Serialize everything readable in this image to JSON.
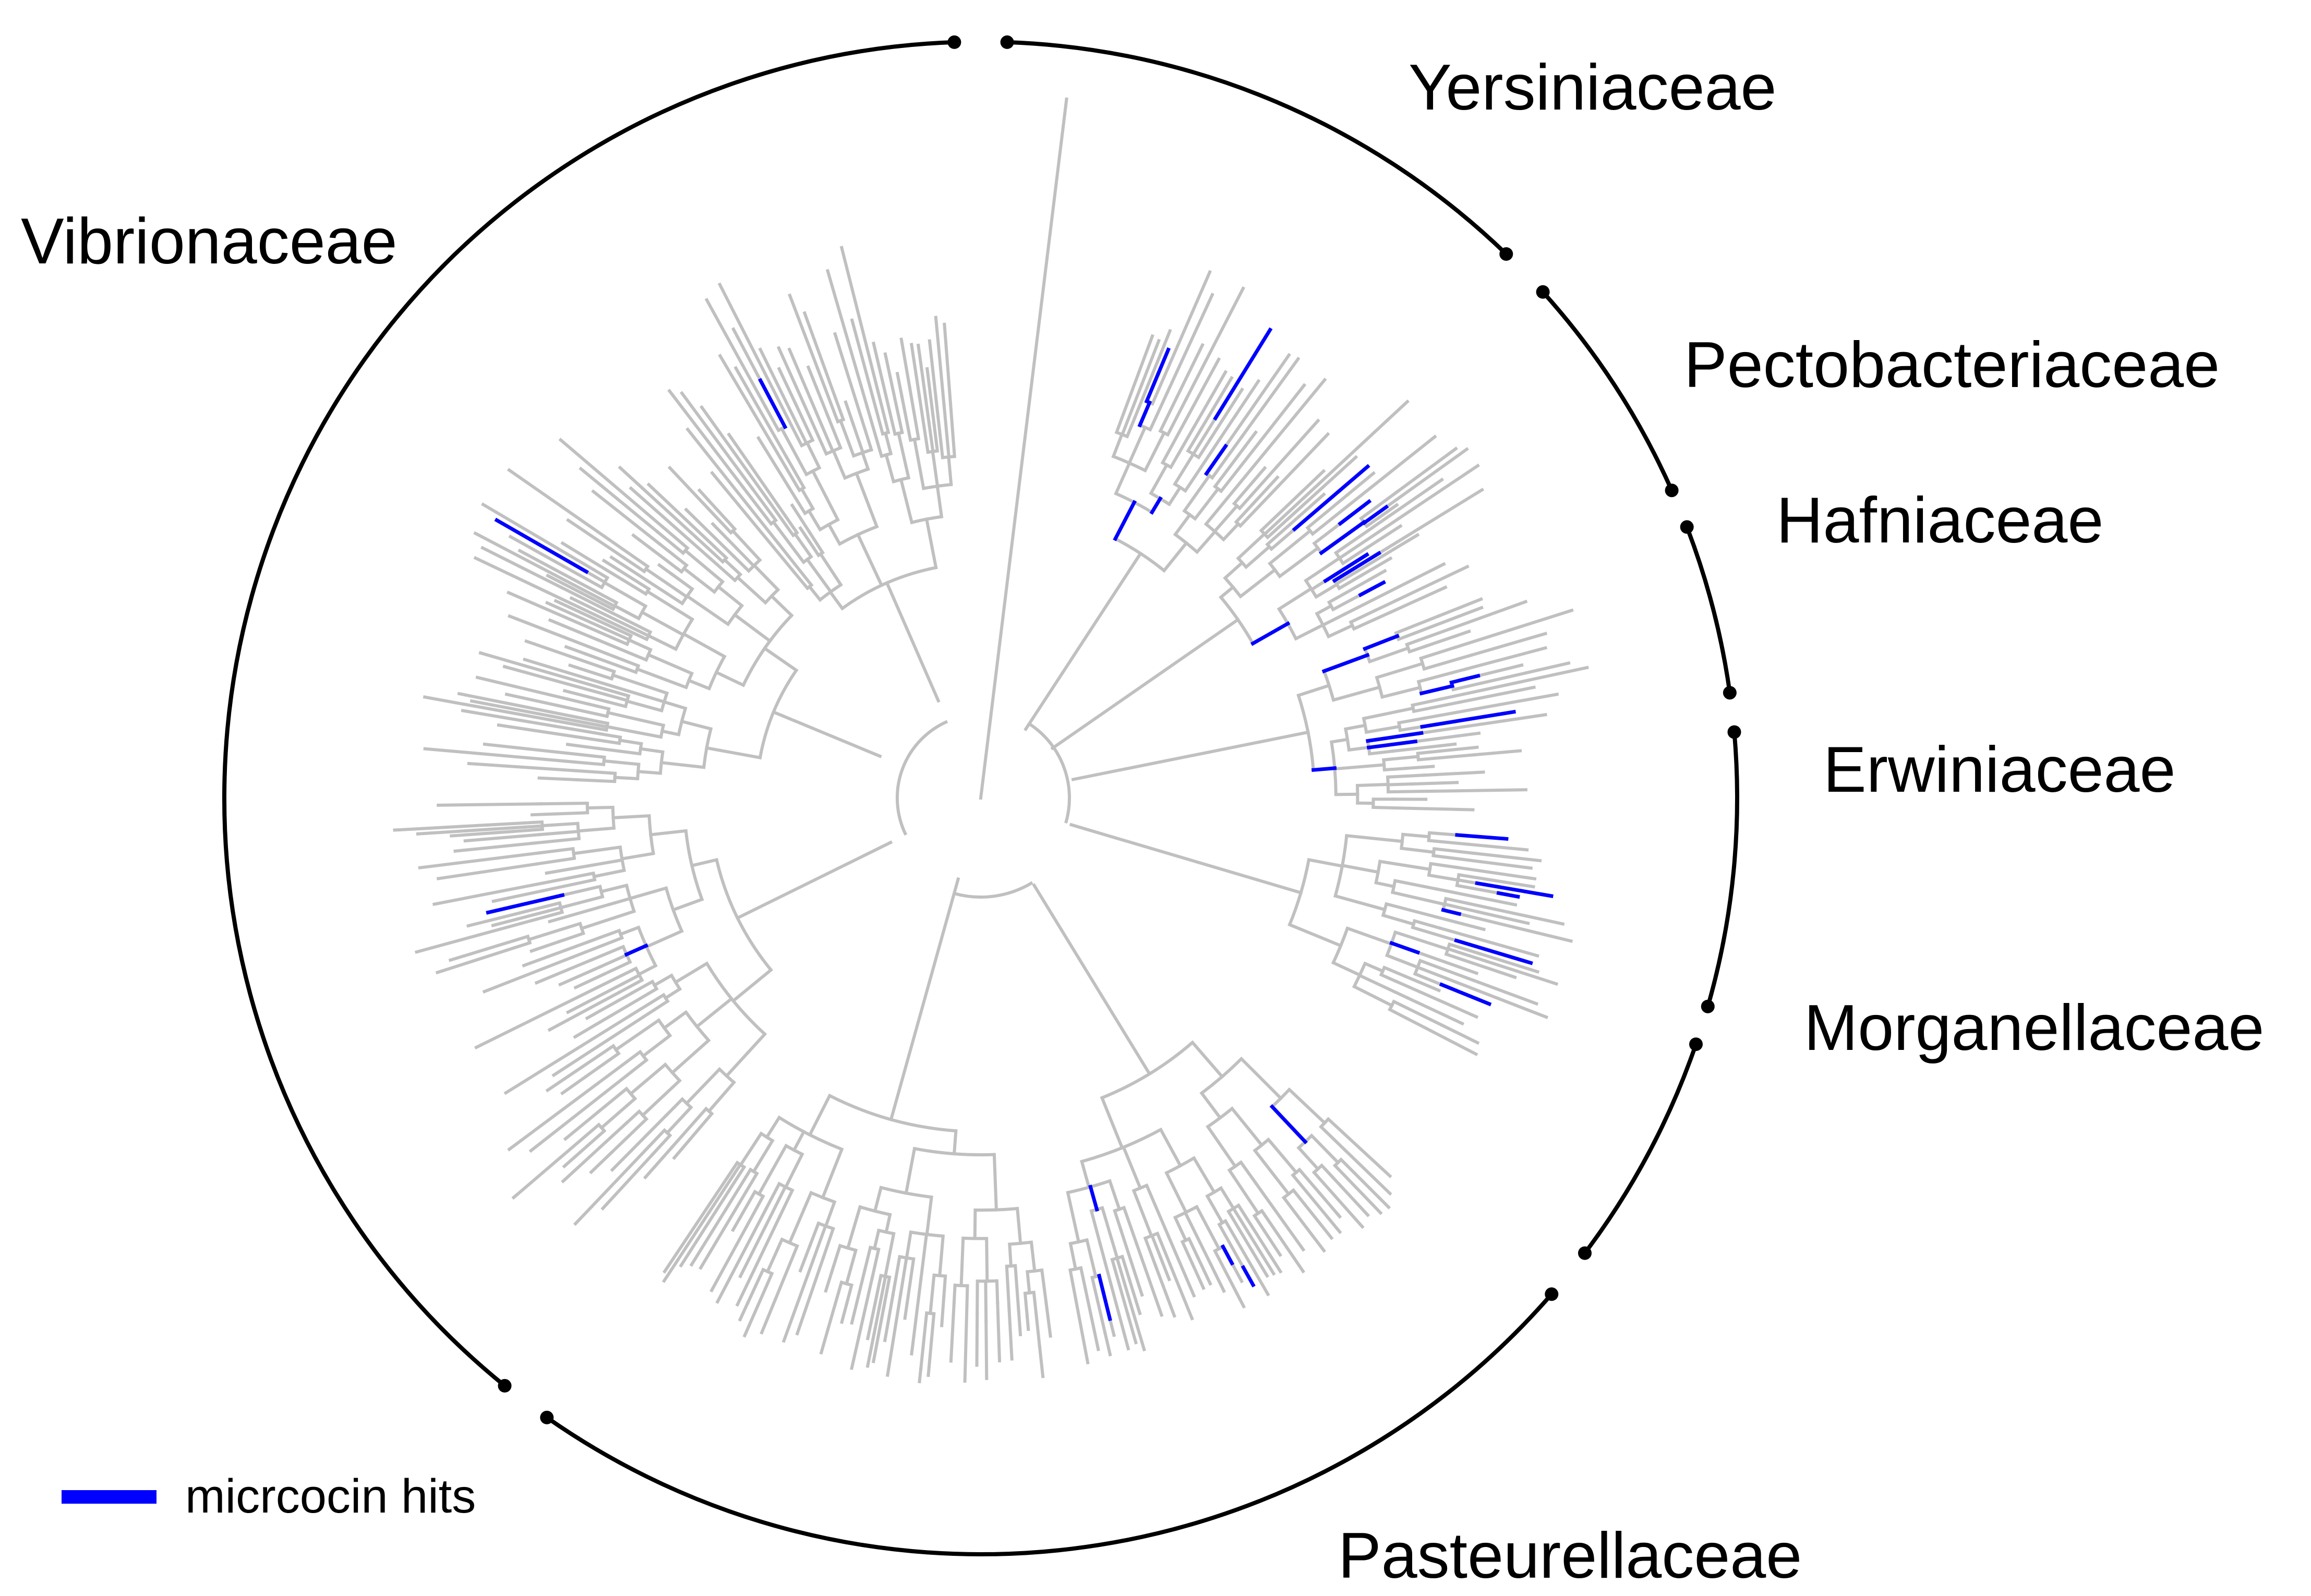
{
  "title": "",
  "colors": {
    "branch": "#c0c0c0",
    "hit": "#0000ff",
    "arc": "#000000",
    "background": "#ffffff"
  },
  "clades": [
    {
      "id": "yersiniaceae",
      "label": "Yersiniaceae",
      "start_deg": 2,
      "end_deg": 44
    },
    {
      "id": "pectobacteriaceae",
      "label": "Pectobacteriaceae",
      "start_deg": 48,
      "end_deg": 66
    },
    {
      "id": "hafniaceae",
      "label": "Hafniaceae",
      "start_deg": 69,
      "end_deg": 82
    },
    {
      "id": "erwiniaceae",
      "label": "Erwiniaceae",
      "start_deg": 85,
      "end_deg": 106
    },
    {
      "id": "morganellaceae",
      "label": "Morganellaceae",
      "start_deg": 109,
      "end_deg": 127
    },
    {
      "id": "pasteurellaceae",
      "label": "Pasteurellaceae",
      "start_deg": 131,
      "end_deg": 215
    },
    {
      "id": "vibrionaceae",
      "label": "Vibrionaceae",
      "start_deg": 219,
      "end_deg": 358
    }
  ],
  "legend": {
    "label": "micrcocin hits",
    "color": "#0000ff"
  }
}
